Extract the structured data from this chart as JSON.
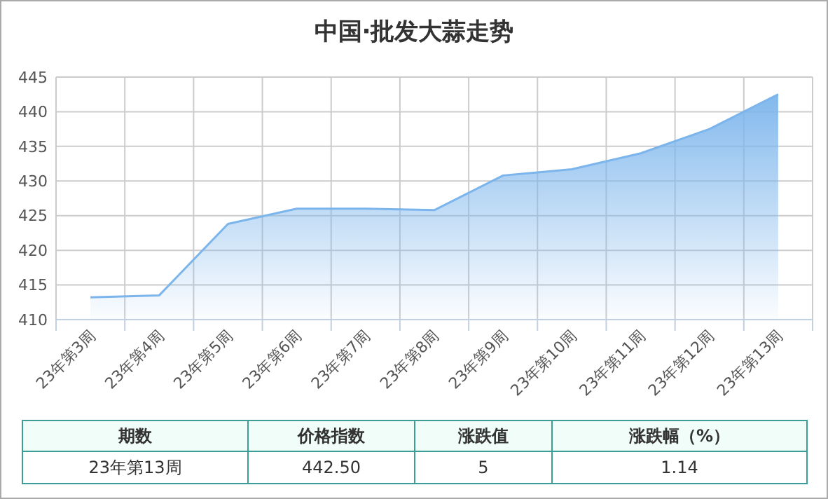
{
  "chart_data": {
    "type": "area",
    "title": "中国·批发大蒜走势",
    "categories": [
      "23年第3周",
      "23年第4周",
      "23年第5周",
      "23年第6周",
      "23年第7周",
      "23年第8周",
      "23年第9周",
      "23年第10周",
      "23年第11周",
      "23年第12周",
      "23年第13周"
    ],
    "series": [
      {
        "color": "#7cb5ec",
        "values": [
          413.2,
          413.5,
          423.8,
          426,
          426,
          425.8,
          430.8,
          431.7,
          434,
          437.5,
          442.5
        ]
      }
    ],
    "ylim": [
      410,
      445
    ],
    "yticks": [
      410,
      415,
      420,
      425,
      430,
      435,
      440,
      445
    ],
    "grid": true,
    "annotations": [
      "期数",
      "价格指数",
      "涨跌值",
      "涨跌幅（%）",
      "23年第13周",
      "442.50",
      "5",
      "1.14"
    ]
  }
}
